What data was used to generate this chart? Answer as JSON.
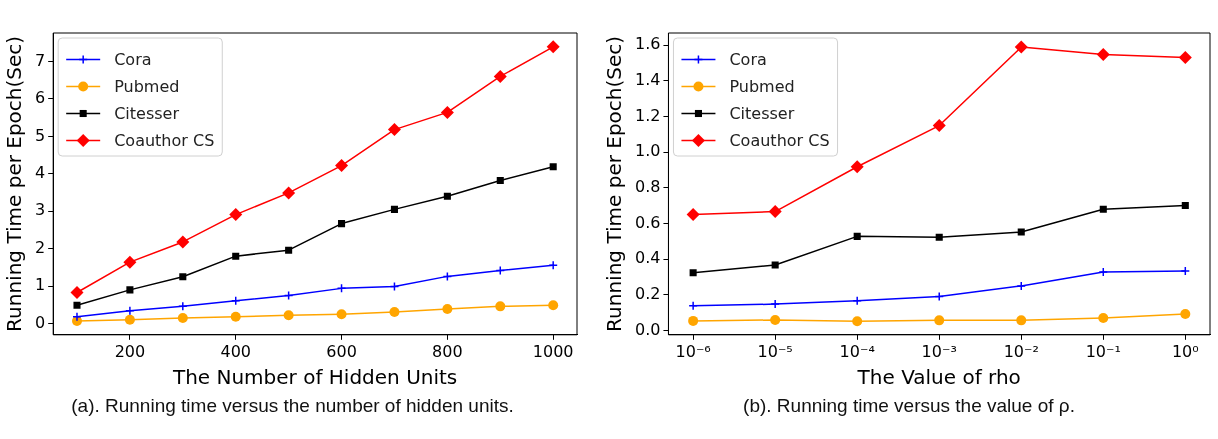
{
  "chart_data": [
    {
      "type": "line",
      "xlabel": "The Number of Hidden Units",
      "ylabel": "Running Time per Epoch(Sec)",
      "x": [
        100,
        200,
        300,
        400,
        500,
        600,
        700,
        800,
        900,
        1000
      ],
      "xlim": [
        55,
        1045
      ],
      "xticks": [
        200,
        400,
        600,
        800,
        1000
      ],
      "ylim": [
        -0.3,
        7.76
      ],
      "yticks": [
        0,
        1,
        2,
        3,
        4,
        5,
        6,
        7
      ],
      "grid": false,
      "legend": "top left",
      "line_style": "solid",
      "series": [
        {
          "name": "Cora",
          "color": "#0000ff",
          "marker": "cross",
          "values": [
            0.18,
            0.34,
            0.46,
            0.61,
            0.75,
            0.94,
            0.99,
            1.26,
            1.42,
            1.56
          ]
        },
        {
          "name": "Pubmed",
          "color": "#ffa500",
          "marker": "circle",
          "values": [
            0.07,
            0.1,
            0.15,
            0.18,
            0.22,
            0.25,
            0.31,
            0.39,
            0.46,
            0.49
          ]
        },
        {
          "name": "Citesser",
          "color": "#000000",
          "marker": "square",
          "values": [
            0.49,
            0.9,
            1.25,
            1.8,
            1.96,
            2.67,
            3.05,
            3.4,
            3.82,
            4.19
          ]
        },
        {
          "name": "Coauthor CS",
          "color": "#ff0000",
          "marker": "diamond",
          "values": [
            0.83,
            1.64,
            2.18,
            2.91,
            3.49,
            4.22,
            5.18,
            5.64,
            6.6,
            7.39
          ]
        }
      ],
      "annotations": [
        "(a). Running time versus the number of hidden units."
      ]
    },
    {
      "type": "line",
      "xlabel": "The Value of rho",
      "ylabel": "Running Time per Epoch(Sec)",
      "log": "x",
      "x": [
        1e-06,
        1e-05,
        0.0001,
        0.001,
        0.01,
        0.1,
        1
      ],
      "xlim": [
        5e-07,
        2
      ],
      "xticks": [
        {
          "value": 1e-06,
          "label": "10⁻⁶"
        },
        {
          "value": 1e-05,
          "label": "10⁻⁵"
        },
        {
          "value": 0.0001,
          "label": "10⁻⁴"
        },
        {
          "value": 0.001,
          "label": "10⁻³"
        },
        {
          "value": 0.01,
          "label": "10⁻²"
        },
        {
          "value": 0.1,
          "label": "10⁻¹"
        },
        {
          "value": 1,
          "label": "10⁰"
        }
      ],
      "ylim": [
        -0.024,
        1.668
      ],
      "yticks": [
        {
          "value": 0,
          "label": "0.0"
        },
        {
          "value": 0.2,
          "label": "0.2"
        },
        {
          "value": 0.4,
          "label": "0.4"
        },
        {
          "value": 0.6,
          "label": "0.6"
        },
        {
          "value": 0.8,
          "label": "0.8"
        },
        {
          "value": 1,
          "label": "1.0"
        },
        {
          "value": 1.2,
          "label": "1.2"
        },
        {
          "value": 1.4,
          "label": "1.4"
        },
        {
          "value": 1.6,
          "label": "1.6"
        }
      ],
      "grid": false,
      "legend": "top left",
      "line_style": "solid",
      "series": [
        {
          "name": "Cora",
          "color": "#0000ff",
          "marker": "cross",
          "values": [
            0.139,
            0.148,
            0.167,
            0.191,
            0.25,
            0.328,
            0.334
          ]
        },
        {
          "name": "Pubmed",
          "color": "#ffa500",
          "marker": "circle",
          "values": [
            0.054,
            0.059,
            0.052,
            0.057,
            0.057,
            0.07,
            0.093
          ]
        },
        {
          "name": "Citesser",
          "color": "#000000",
          "marker": "square",
          "values": [
            0.324,
            0.367,
            0.528,
            0.523,
            0.552,
            0.68,
            0.701
          ]
        },
        {
          "name": "Coauthor CS",
          "color": "#ff0000",
          "marker": "diamond",
          "values": [
            0.651,
            0.667,
            0.918,
            1.149,
            1.589,
            1.548,
            1.531
          ]
        }
      ],
      "annotations": [
        "(b). Running time versus the value of ρ."
      ]
    }
  ]
}
